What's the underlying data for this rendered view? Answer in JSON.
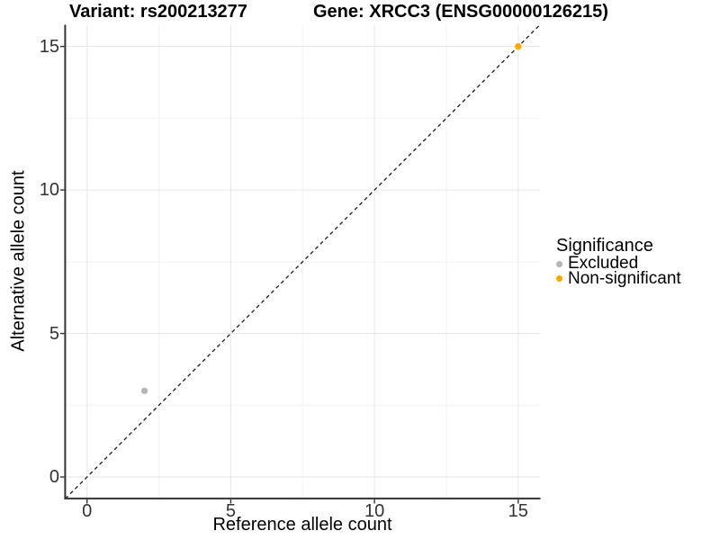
{
  "chart_data": {
    "type": "scatter",
    "title": {
      "variant": "Variant: rs200213277",
      "gene": "Gene: XRCC3 (ENSG00000126215)"
    },
    "xlabel": "Reference allele count",
    "ylabel": "Alternative allele count",
    "xlim": [
      0,
      15
    ],
    "ylim": [
      0,
      15
    ],
    "xticks": [
      0,
      5,
      10,
      15
    ],
    "yticks": [
      0,
      5,
      10,
      15
    ],
    "xminor": [
      2.5,
      7.5,
      12.5
    ],
    "yminor": [
      2.5,
      7.5,
      12.5
    ],
    "grid": true,
    "legend_position": "right",
    "points": [
      {
        "x": 2,
        "y": 3,
        "significance": "Excluded",
        "color": "#B5B5B5"
      },
      {
        "x": 15,
        "y": 15,
        "significance": "Non-significant",
        "color": "#FFA500"
      }
    ],
    "identity_line": {
      "slope": 1,
      "intercept": 0,
      "style": "dashed",
      "color": "#1A1A1A"
    },
    "legend": {
      "title": "Significance",
      "entries": [
        {
          "label": "Excluded",
          "color": "#B5B5B5"
        },
        {
          "label": "Non-significant",
          "color": "#FFA500"
        }
      ]
    },
    "colors": {
      "axis": "#333333",
      "grid_major": "#E6E6E6",
      "grid_minor": "#F2F2F2",
      "background": "#FFFFFF"
    }
  }
}
